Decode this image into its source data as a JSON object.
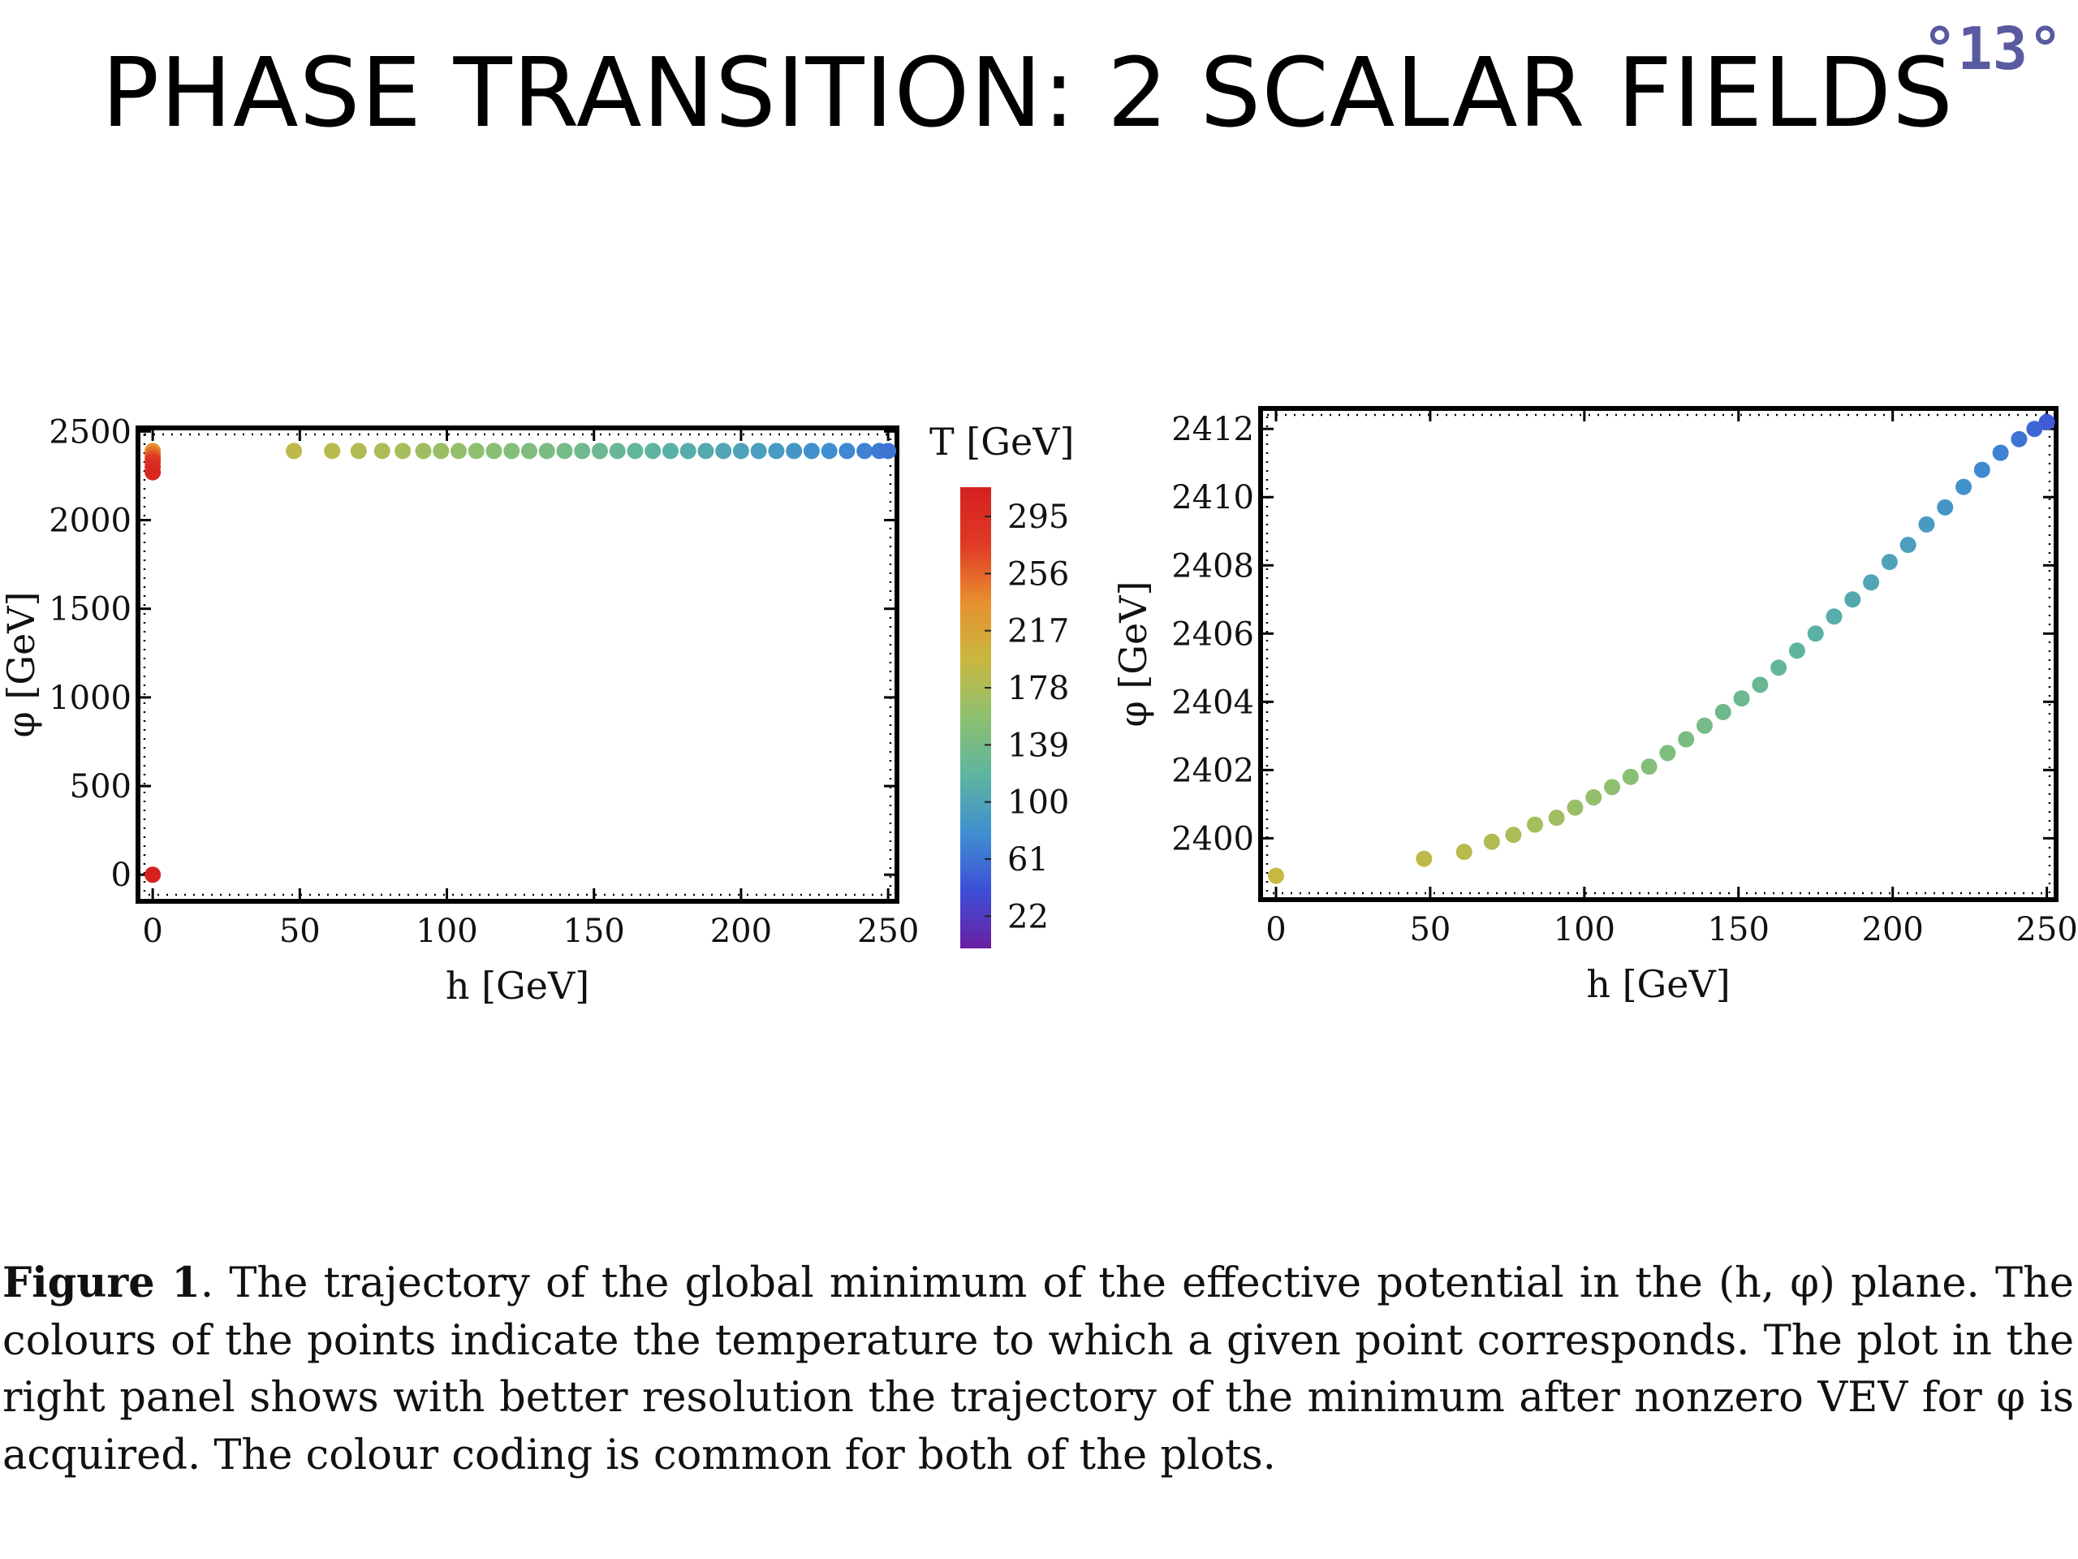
{
  "slide": {
    "title": "PHASE TRANSITION: 2 SCALAR FIELDS",
    "number": "°13°",
    "number_color": "#5a5aa0"
  },
  "caption": {
    "label": "Figure 1",
    "text": ". The trajectory of the global minimum of the effective potential in the (h, φ) plane. The colours of the points indicate the temperature to which a given point corresponds. The plot in the right panel shows with better resolution the trajectory of the minimum after nonzero VEV for φ is acquired. The colour coding is common for both of the plots."
  },
  "colorbar": {
    "title": "T [GeV]",
    "range": [
      0,
      315
    ],
    "ticks": [
      22,
      61,
      100,
      139,
      178,
      217,
      256,
      295
    ],
    "colors": [
      "#6a1fa0",
      "#3d4fd8",
      "#3f8fd0",
      "#5db5a0",
      "#8dc070",
      "#c8b840",
      "#e8902e",
      "#e03a25",
      "#d42020"
    ]
  },
  "chart_data": [
    {
      "type": "scatter",
      "panel": "left",
      "xlabel": "h [GeV]",
      "ylabel": "φ [GeV]",
      "xlim": [
        -5,
        253
      ],
      "ylim": [
        -150,
        2520
      ],
      "xticks": [
        0,
        50,
        100,
        150,
        200,
        250
      ],
      "yticks": [
        0,
        500,
        1000,
        1500,
        2000,
        2500
      ],
      "color_by": "T [GeV]",
      "points_h0": [
        {
          "h": 0,
          "phi": 2390,
          "T": 235
        },
        {
          "h": 0,
          "phi": 2370,
          "T": 250
        },
        {
          "h": 0,
          "phi": 2350,
          "T": 265
        },
        {
          "h": 0,
          "phi": 2330,
          "T": 280
        },
        {
          "h": 0,
          "phi": 2300,
          "T": 295
        },
        {
          "h": 0,
          "phi": 2270,
          "T": 305
        },
        {
          "h": 0,
          "phi": 0,
          "T": 312
        }
      ],
      "trajectory_h": [
        48,
        61,
        70,
        78,
        85,
        92,
        98,
        104,
        110,
        116,
        122,
        128,
        134,
        140,
        146,
        152,
        158,
        164,
        170,
        176,
        182,
        188,
        194,
        200,
        206,
        212,
        218,
        224,
        230,
        236,
        242,
        247,
        250
      ],
      "trajectory_phi": [
        2399.4,
        2399.7,
        2400,
        2400.3,
        2400.6,
        2400.9,
        2401.2,
        2401.5,
        2401.9,
        2402.3,
        2402.7,
        2403.1,
        2403.6,
        2404.1,
        2404.6,
        2405.1,
        2405.7,
        2406.3,
        2406.9,
        2407.5,
        2408.1,
        2408.8,
        2409.4,
        2410,
        2410.6,
        2411.1,
        2411.6,
        2412,
        2412.3,
        2412.5,
        2412.6,
        2412.7,
        2412.8
      ],
      "trajectory_T": [
        190,
        186,
        182,
        178,
        174,
        170,
        166,
        162,
        158,
        154,
        150,
        146,
        142,
        138,
        134,
        130,
        126,
        122,
        118,
        114,
        110,
        106,
        102,
        98,
        94,
        90,
        86,
        82,
        78,
        74,
        70,
        66,
        62
      ]
    },
    {
      "type": "scatter",
      "panel": "right",
      "xlabel": "h [GeV]",
      "ylabel": "φ [GeV]",
      "xlim": [
        -5,
        253
      ],
      "ylim": [
        2398.2,
        2412.6
      ],
      "xticks": [
        0,
        50,
        100,
        150,
        200,
        250
      ],
      "yticks": [
        2400,
        2402,
        2404,
        2406,
        2408,
        2410,
        2412
      ],
      "color_by": "T [GeV]",
      "h": [
        0,
        48,
        61,
        70,
        77,
        84,
        91,
        97,
        103,
        109,
        115,
        121,
        127,
        133,
        139,
        145,
        151,
        157,
        163,
        169,
        175,
        181,
        187,
        193,
        199,
        205,
        211,
        217,
        223,
        229,
        235,
        241,
        246,
        250
      ],
      "phi": [
        2398.9,
        2399.4,
        2399.6,
        2399.9,
        2400.1,
        2400.4,
        2400.6,
        2400.9,
        2401.2,
        2401.5,
        2401.8,
        2402.1,
        2402.5,
        2402.9,
        2403.3,
        2403.7,
        2404.1,
        2404.5,
        2405,
        2405.5,
        2406,
        2406.5,
        2407,
        2407.5,
        2408.1,
        2408.6,
        2409.2,
        2409.7,
        2410.3,
        2410.8,
        2411.3,
        2411.7,
        2412,
        2412.2
      ],
      "T": [
        196,
        190,
        186,
        182,
        178,
        174,
        170,
        166,
        162,
        158,
        154,
        150,
        146,
        142,
        138,
        134,
        130,
        126,
        122,
        118,
        114,
        110,
        106,
        102,
        98,
        94,
        90,
        86,
        82,
        76,
        70,
        62,
        54,
        46
      ]
    }
  ]
}
